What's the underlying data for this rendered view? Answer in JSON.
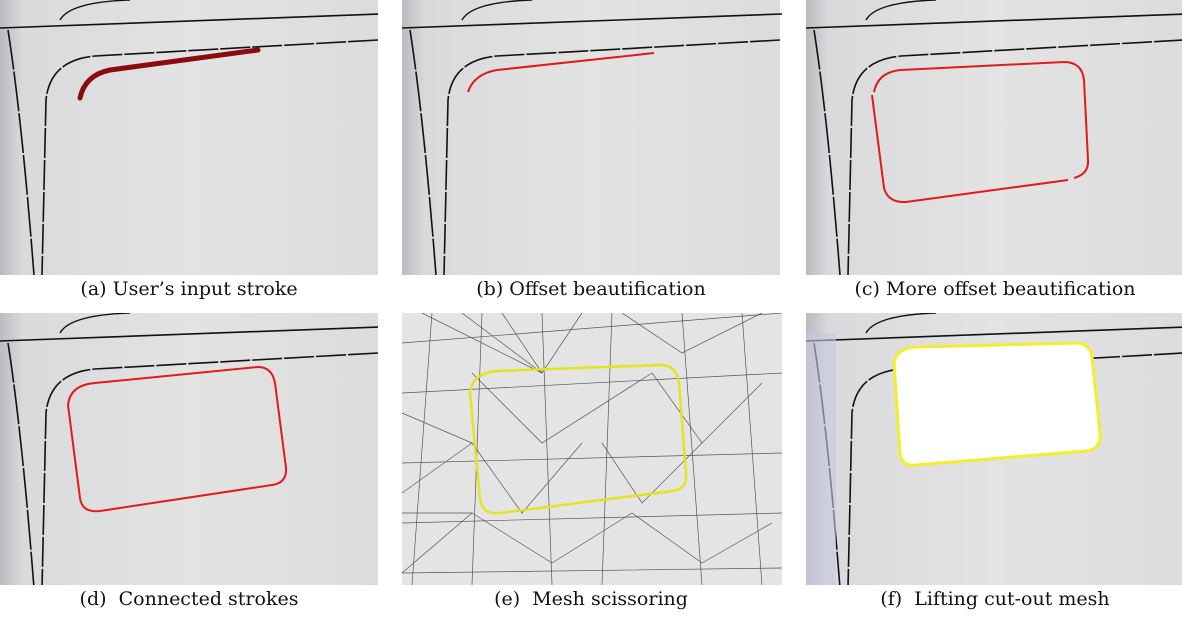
{
  "figure": {
    "panels": [
      {
        "caption": "(a) User’s input stroke"
      },
      {
        "caption": "(b) Offset beautification"
      },
      {
        "caption": "(c) More offset beautification"
      },
      {
        "caption": "(d)  Connected strokes"
      },
      {
        "caption": "(e)  Mesh scissoring"
      },
      {
        "caption": "(f)  Lifting cut-out mesh"
      }
    ]
  }
}
